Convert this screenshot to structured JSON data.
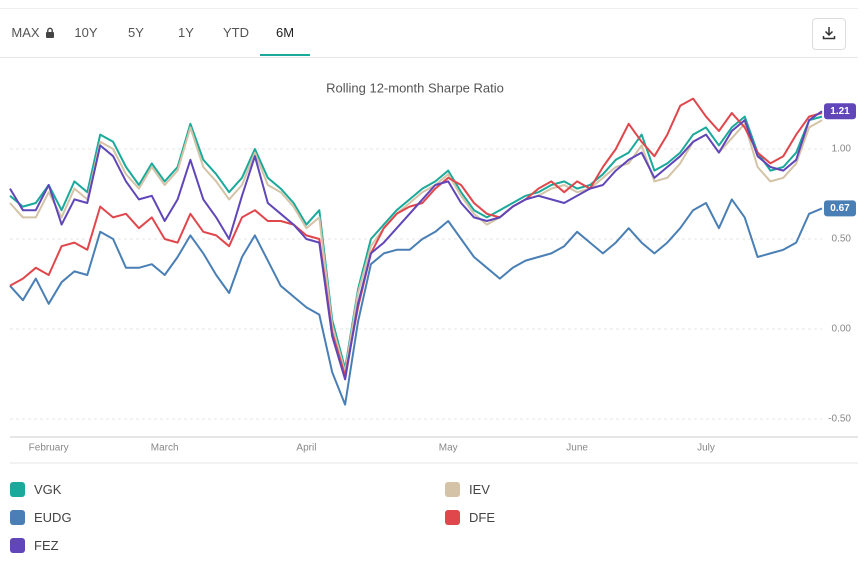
{
  "tabs": [
    {
      "label": "MAX",
      "locked": true
    },
    {
      "label": "10Y"
    },
    {
      "label": "5Y"
    },
    {
      "label": "1Y"
    },
    {
      "label": "YTD"
    },
    {
      "label": "6M",
      "active": true
    }
  ],
  "chart_data": {
    "type": "line",
    "title": "Rolling 12-month Sharpe Ratio",
    "categories": [
      null,
      null,
      null,
      "February",
      null,
      null,
      null,
      null,
      null,
      null,
      null,
      null,
      "March",
      null,
      null,
      null,
      null,
      null,
      null,
      null,
      null,
      null,
      null,
      "April",
      null,
      null,
      null,
      null,
      null,
      null,
      null,
      null,
      null,
      null,
      "May",
      null,
      null,
      null,
      null,
      null,
      null,
      null,
      null,
      null,
      "June",
      null,
      null,
      null,
      null,
      null,
      null,
      null,
      null,
      null,
      "July",
      null,
      null,
      null,
      null,
      null,
      null,
      null,
      null,
      null
    ],
    "ylim": [
      -0.6,
      1.4
    ],
    "yticks": [
      {
        "value": -0.5,
        "label": "-0.50"
      },
      {
        "value": 0,
        "label": "0.00"
      },
      {
        "value": 0.5,
        "label": "0.50"
      },
      {
        "value": 1,
        "label": "1.00"
      }
    ],
    "grid": true,
    "series": [
      {
        "name": "VGK",
        "color": "#1aa99a",
        "values": [
          0.74,
          0.68,
          0.7,
          0.8,
          0.66,
          0.82,
          0.76,
          1.08,
          1.04,
          0.9,
          0.8,
          0.92,
          0.82,
          0.9,
          1.14,
          0.94,
          0.86,
          0.76,
          0.84,
          1.0,
          0.84,
          0.78,
          0.7,
          0.58,
          0.66,
          0.05,
          -0.22,
          0.22,
          0.5,
          0.58,
          0.66,
          0.72,
          0.78,
          0.82,
          0.88,
          0.76,
          0.66,
          0.62,
          0.66,
          0.7,
          0.74,
          0.76,
          0.8,
          0.82,
          0.78,
          0.8,
          0.86,
          0.94,
          0.98,
          1.08,
          0.88,
          0.92,
          0.98,
          1.08,
          1.12,
          1.02,
          1.12,
          1.18,
          0.98,
          0.88,
          0.9,
          0.98,
          1.16,
          1.18
        ]
      },
      {
        "name": "IEV",
        "color": "#d4c3a6",
        "values": [
          0.7,
          0.62,
          0.62,
          0.76,
          0.62,
          0.78,
          0.72,
          1.04,
          1.0,
          0.86,
          0.78,
          0.9,
          0.8,
          0.88,
          1.12,
          0.9,
          0.82,
          0.72,
          0.8,
          0.98,
          0.8,
          0.76,
          0.68,
          0.56,
          0.62,
          0.02,
          -0.24,
          0.2,
          0.46,
          0.56,
          0.64,
          0.7,
          0.76,
          0.8,
          0.86,
          0.74,
          0.64,
          0.58,
          0.62,
          0.68,
          0.72,
          0.74,
          0.78,
          0.8,
          0.76,
          0.78,
          0.84,
          0.9,
          0.92,
          1.02,
          0.82,
          0.84,
          0.92,
          1.04,
          1.08,
          0.98,
          1.06,
          1.14,
          0.9,
          0.82,
          0.84,
          0.92,
          1.12,
          1.16
        ]
      },
      {
        "name": "EUDG",
        "color": "#4a7fb5",
        "values": [
          0.24,
          0.16,
          0.28,
          0.14,
          0.26,
          0.32,
          0.3,
          0.54,
          0.5,
          0.34,
          0.34,
          0.36,
          0.3,
          0.4,
          0.52,
          0.42,
          0.3,
          0.2,
          0.4,
          0.52,
          0.38,
          0.24,
          0.18,
          0.12,
          0.08,
          -0.24,
          -0.42,
          0.04,
          0.36,
          0.42,
          0.44,
          0.44,
          0.5,
          0.54,
          0.6,
          0.5,
          0.4,
          0.34,
          0.28,
          0.34,
          0.38,
          0.4,
          0.42,
          0.46,
          0.54,
          0.48,
          0.42,
          0.48,
          0.56,
          0.48,
          0.42,
          0.48,
          0.56,
          0.66,
          0.7,
          0.56,
          0.72,
          0.62,
          0.4,
          0.42,
          0.44,
          0.48,
          0.64,
          0.67
        ],
        "value_labels": [
          null,
          null,
          null,
          null,
          null,
          null,
          null,
          null,
          null,
          null,
          null,
          null,
          null,
          null,
          null,
          null,
          null,
          null,
          null,
          null,
          null,
          null,
          null,
          null,
          null,
          null,
          null,
          null,
          null,
          null,
          null,
          null,
          null,
          null,
          null,
          null,
          null,
          null,
          null,
          null,
          null,
          null,
          null,
          null,
          null,
          null,
          null,
          null,
          null,
          null,
          null,
          null,
          null,
          null,
          null,
          null,
          null,
          null,
          null,
          null,
          null,
          null,
          null,
          "0.67"
        ]
      },
      {
        "name": "DFE",
        "color": "#e0474c",
        "values": [
          0.24,
          0.28,
          0.34,
          0.3,
          0.46,
          0.48,
          0.44,
          0.68,
          0.62,
          0.64,
          0.56,
          0.62,
          0.5,
          0.48,
          0.64,
          0.54,
          0.52,
          0.46,
          0.62,
          0.66,
          0.6,
          0.6,
          0.58,
          0.52,
          0.5,
          -0.02,
          -0.26,
          0.12,
          0.42,
          0.56,
          0.64,
          0.68,
          0.7,
          0.78,
          0.84,
          0.8,
          0.7,
          0.64,
          0.62,
          0.68,
          0.72,
          0.78,
          0.82,
          0.76,
          0.82,
          0.78,
          0.9,
          1.0,
          1.14,
          1.04,
          0.96,
          1.08,
          1.24,
          1.28,
          1.18,
          1.1,
          1.2,
          1.12,
          0.98,
          0.92,
          0.96,
          1.08,
          1.18,
          1.2
        ]
      },
      {
        "name": "FEZ",
        "color": "#6046b8",
        "values": [
          0.78,
          0.66,
          0.66,
          0.8,
          0.58,
          0.72,
          0.7,
          1.02,
          0.96,
          0.82,
          0.72,
          0.74,
          0.6,
          0.72,
          0.94,
          0.72,
          0.62,
          0.5,
          0.74,
          0.96,
          0.7,
          0.64,
          0.58,
          0.5,
          0.48,
          -0.04,
          -0.28,
          0.14,
          0.42,
          0.48,
          0.56,
          0.64,
          0.72,
          0.8,
          0.82,
          0.7,
          0.62,
          0.6,
          0.62,
          0.68,
          0.72,
          0.74,
          0.72,
          0.7,
          0.74,
          0.78,
          0.8,
          0.88,
          0.94,
          0.98,
          0.84,
          0.9,
          0.96,
          1.04,
          1.08,
          0.98,
          1.1,
          1.16,
          0.96,
          0.9,
          0.88,
          0.94,
          1.16,
          1.21
        ],
        "value_labels": [
          null,
          null,
          null,
          null,
          null,
          null,
          null,
          null,
          null,
          null,
          null,
          null,
          null,
          null,
          null,
          null,
          null,
          null,
          null,
          null,
          null,
          null,
          null,
          null,
          null,
          null,
          null,
          null,
          null,
          null,
          null,
          null,
          null,
          null,
          null,
          null,
          null,
          null,
          null,
          null,
          null,
          null,
          null,
          null,
          null,
          null,
          null,
          null,
          null,
          null,
          null,
          null,
          null,
          null,
          null,
          null,
          null,
          null,
          null,
          null,
          null,
          null,
          null,
          "1.21"
        ]
      }
    ]
  }
}
